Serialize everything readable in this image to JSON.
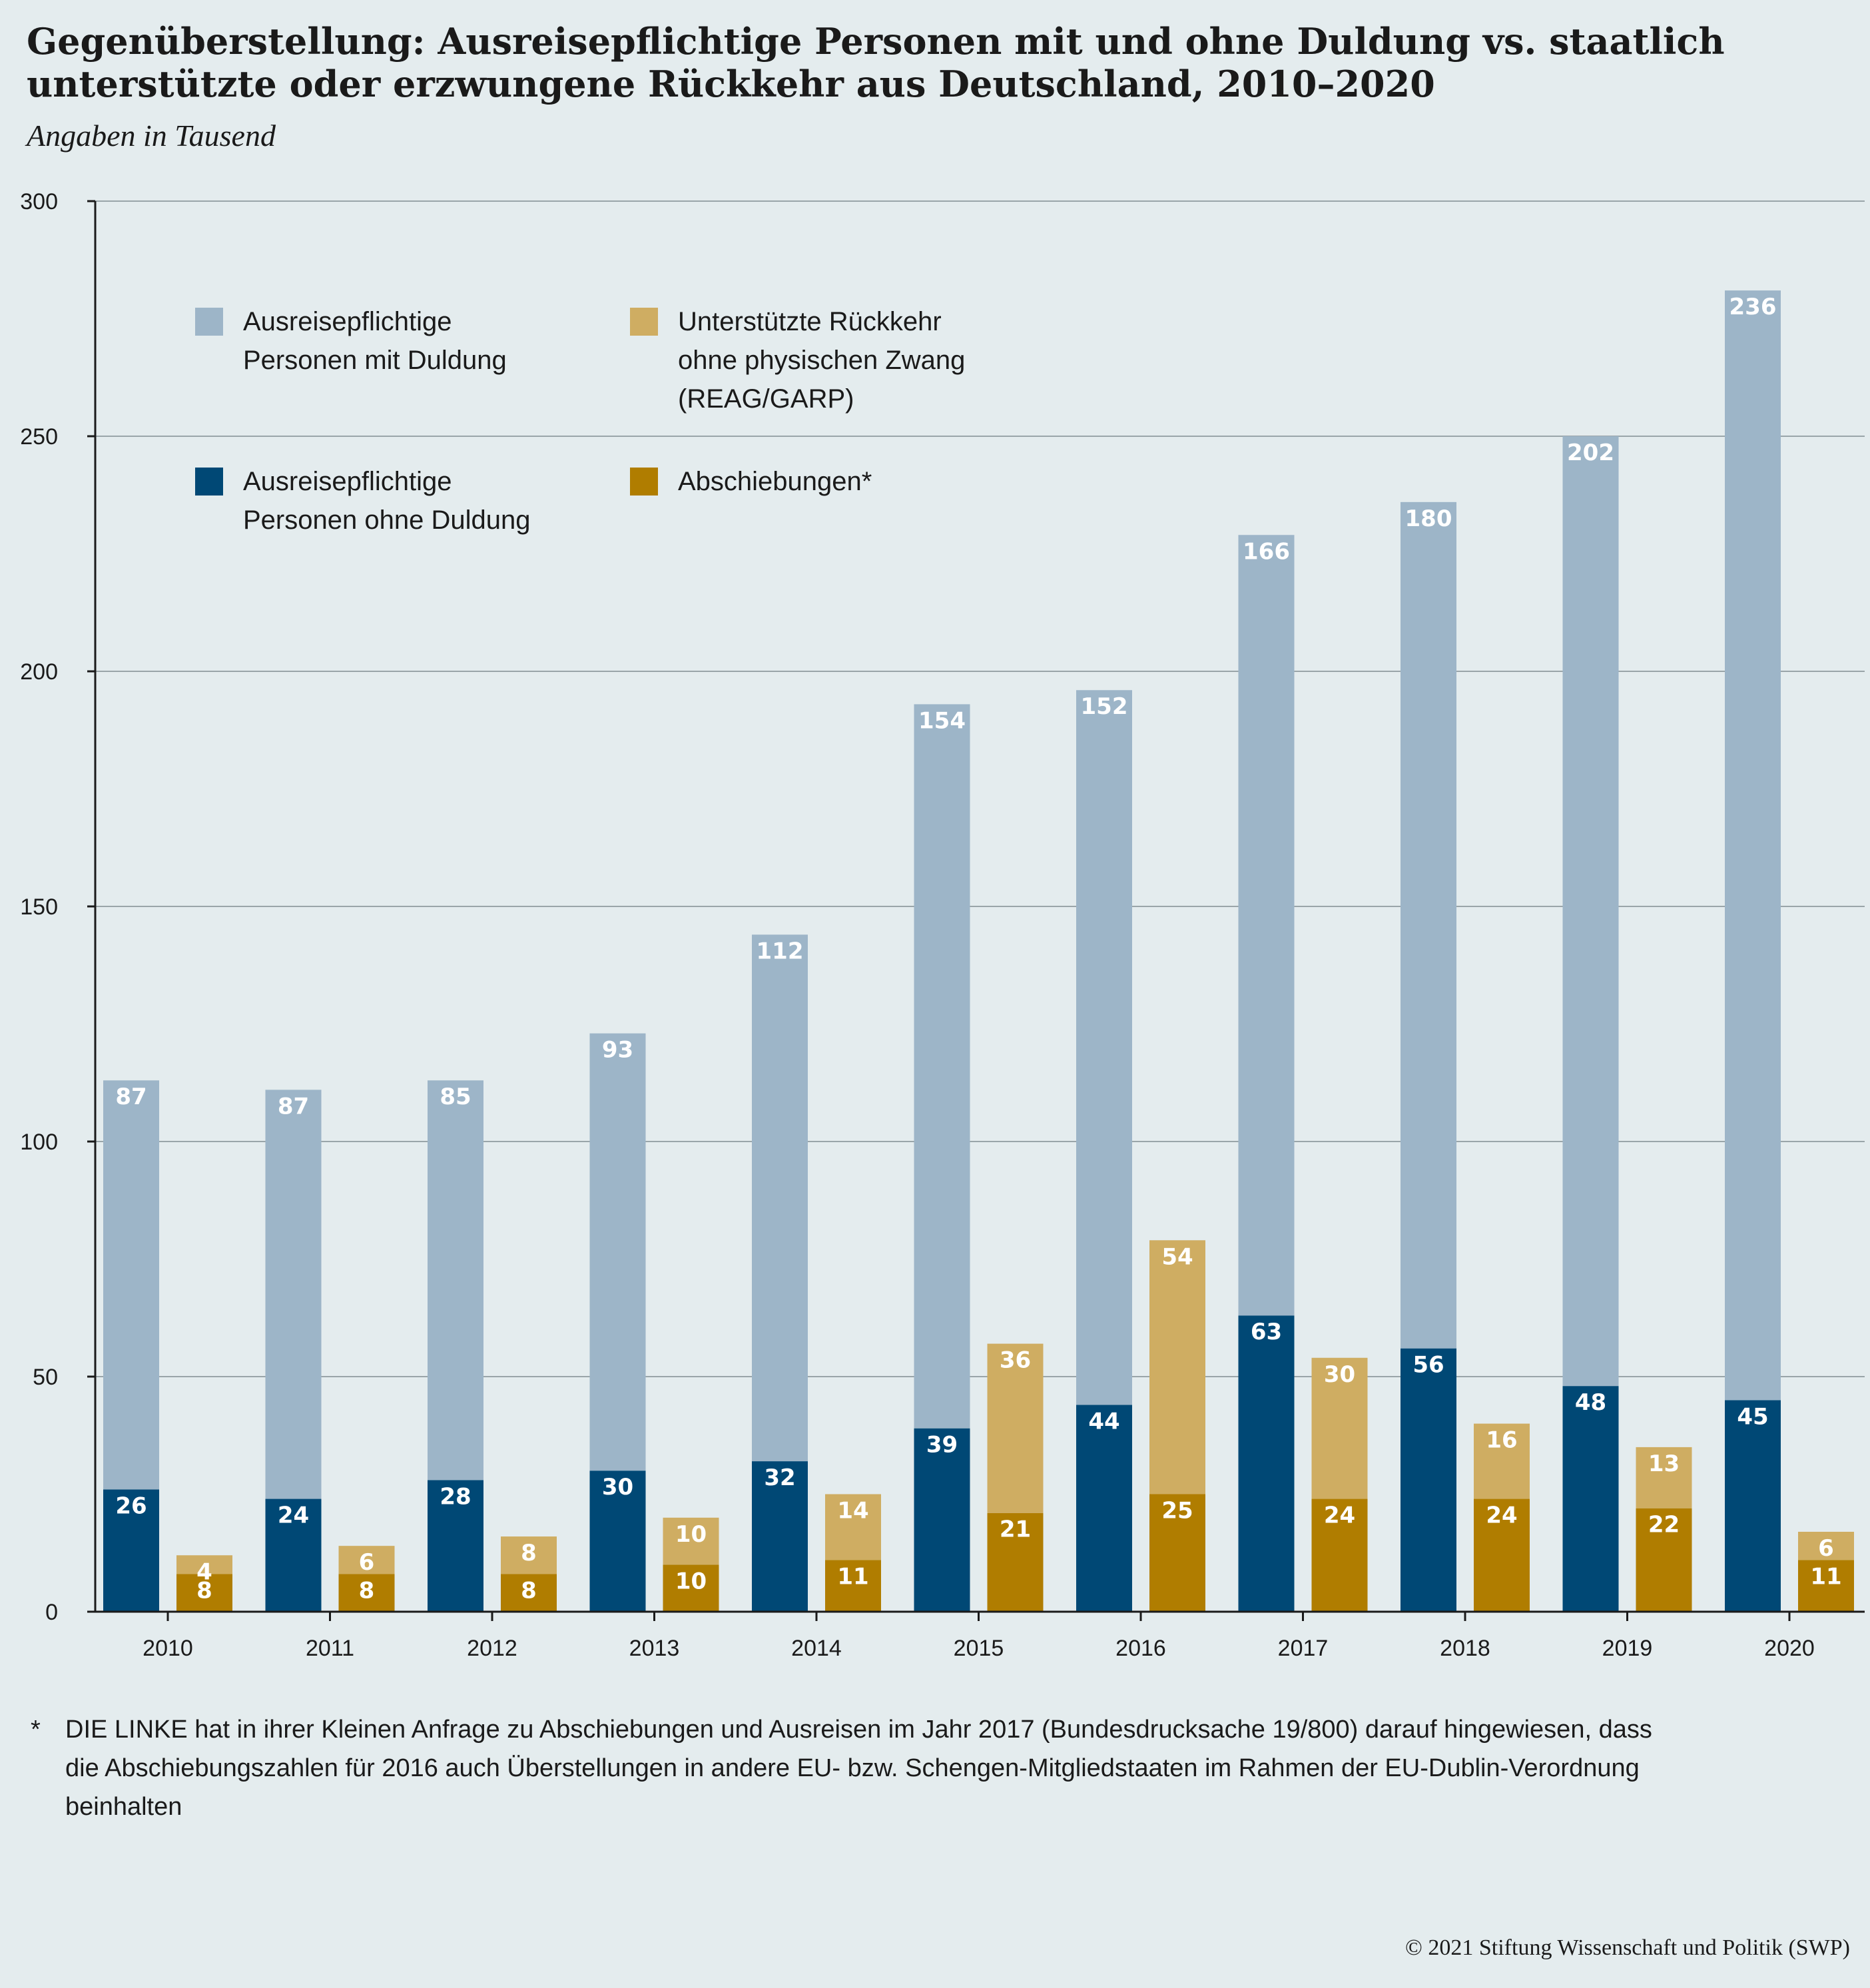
{
  "chart_data": {
    "type": "bar",
    "title": "Gegenüberstellung: Ausreisepflichtige Personen mit und ohne Duldung vs. staatlich unterstützte oder erzwungene Rückkehr aus Deutschland, 2010–2020",
    "subtitle": "Angaben in Tausend",
    "categories": [
      "2010",
      "2011",
      "2012",
      "2013",
      "2014",
      "2015",
      "2016",
      "2017",
      "2018",
      "2019",
      "2020"
    ],
    "ylim": [
      0,
      300
    ],
    "yticks": [
      0,
      50,
      100,
      150,
      200,
      250,
      300
    ],
    "grid": true,
    "stacks": [
      {
        "stack": "Ausreisepflichtige",
        "series": [
          {
            "name": "Ausreisepflichtige Personen ohne Duldung",
            "color": "#004875",
            "values": [
              26,
              24,
              28,
              30,
              32,
              39,
              44,
              63,
              56,
              48,
              45
            ]
          },
          {
            "name": "Ausreisepflichtige Personen mit Duldung",
            "color": "#9db5c8",
            "values": [
              87,
              87,
              85,
              93,
              112,
              154,
              152,
              166,
              180,
              202,
              236
            ]
          }
        ]
      },
      {
        "stack": "Rückkehr",
        "series": [
          {
            "name": "Abschiebungen*",
            "color": "#b07d00",
            "values": [
              8,
              8,
              8,
              10,
              11,
              21,
              25,
              24,
              24,
              22,
              11
            ]
          },
          {
            "name": "Unterstützte Rückkehr ohne physischen Zwang (REAG/GARP)",
            "color": "#cfad62",
            "values": [
              4,
              6,
              8,
              10,
              14,
              36,
              54,
              30,
              16,
              13,
              6
            ]
          }
        ]
      }
    ],
    "legend": [
      {
        "lines": [
          "Ausreisepflichtige",
          "Personen mit Duldung"
        ],
        "color": "#9db5c8"
      },
      {
        "lines": [
          "Unterstützte Rückkehr",
          "ohne physischen Zwang",
          "(REAG/GARP)"
        ],
        "color": "#cfad62"
      },
      {
        "lines": [
          "Ausreisepflichtige",
          "Personen ohne Duldung"
        ],
        "color": "#004875"
      },
      {
        "lines": [
          "Abschiebungen*"
        ],
        "color": "#b07d00"
      }
    ],
    "legend_placement": "top-left"
  },
  "footnote": {
    "mark": "*",
    "text": "DIE LINKE hat in ihrer Kleinen Anfrage zu Abschiebungen und Ausreisen im Jahr 2017 (Bundesdrucksache 19/800) darauf hingewiesen, dass die Abschiebungszahlen für 2016 auch Überstellungen in andere EU- bzw. Schengen-Mitgliedstaaten im Rahmen der EU-Dublin-Verordnung beinhalten"
  },
  "copyright": "© 2021 Stiftung Wissenschaft und Politik (SWP)"
}
